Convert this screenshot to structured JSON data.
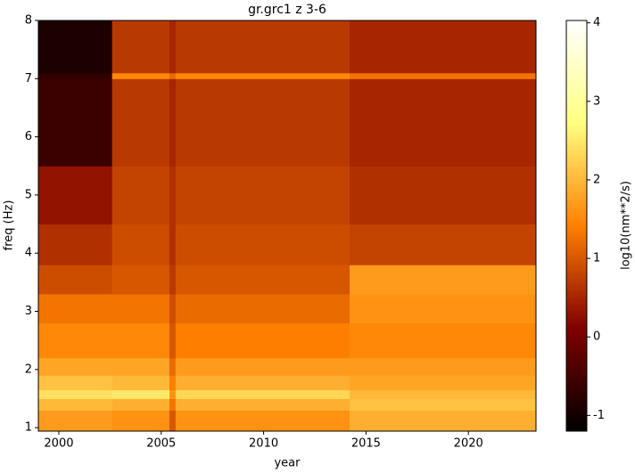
{
  "chart_data": {
    "type": "heatmap",
    "title": "gr.grc1 z 3-6",
    "x_label": "year",
    "y_label": "freq (Hz)",
    "colorbar_label": "log10(nm**2/s)",
    "colormap": "afmhot",
    "x_edges": [
      1999,
      2002.6,
      2005.4,
      2005.7,
      2014.2,
      2023.3
    ],
    "y_edges": [
      0.94,
      1.3,
      1.5,
      1.65,
      1.9,
      2.2,
      2.8,
      3.3,
      3.8,
      4.5,
      5.5,
      7.0,
      7.1,
      8
    ],
    "values": [
      [
        1.7,
        1.6,
        1.0,
        1.6,
        1.9
      ],
      [
        2.0,
        1.9,
        1.3,
        1.9,
        2.1
      ],
      [
        2.4,
        2.5,
        1.6,
        2.3,
        2.0
      ],
      [
        2.1,
        2.0,
        1.4,
        1.9,
        1.8
      ],
      [
        1.8,
        1.8,
        1.2,
        1.7,
        1.7
      ],
      [
        1.5,
        1.5,
        1.0,
        1.4,
        1.5
      ],
      [
        1.3,
        1.3,
        0.9,
        1.2,
        1.6
      ],
      [
        0.9,
        1.0,
        0.7,
        1.0,
        1.7
      ],
      [
        0.6,
        0.9,
        0.6,
        0.9,
        0.8
      ],
      [
        0.3,
        0.8,
        0.6,
        0.8,
        0.6
      ],
      [
        -0.6,
        0.7,
        0.5,
        0.7,
        0.5
      ],
      [
        -0.7,
        1.5,
        1.2,
        1.5,
        1.3
      ],
      [
        -0.9,
        0.7,
        0.5,
        0.7,
        0.5
      ]
    ],
    "xlim": [
      1999,
      2023.3
    ],
    "ylim": [
      0.94,
      8
    ],
    "xticks": [
      2000,
      2005,
      2010,
      2015,
      2020
    ],
    "yticks": [
      1,
      2,
      3,
      4,
      5,
      6,
      7,
      8
    ],
    "clim": [
      -1.2,
      4.03
    ],
    "cticks": [
      -1,
      0,
      1,
      2,
      3,
      4
    ]
  }
}
